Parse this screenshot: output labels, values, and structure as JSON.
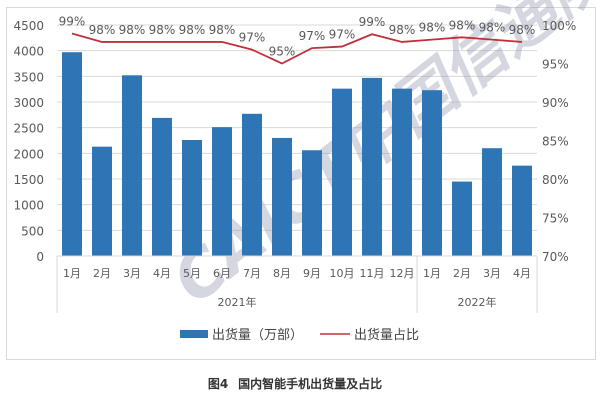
{
  "chart_data": {
    "type": "bar+line",
    "title": "",
    "caption_label": "图4",
    "caption_text": "国内智能手机出货量及占比",
    "categories": [
      "1月",
      "2月",
      "3月",
      "4月",
      "5月",
      "6月",
      "7月",
      "8月",
      "9月",
      "10月",
      "11月",
      "12月",
      "1月",
      "2月",
      "3月",
      "4月"
    ],
    "groups": [
      {
        "label": "2021年",
        "start": 0,
        "end": 11
      },
      {
        "label": "2022年",
        "start": 12,
        "end": 15
      }
    ],
    "series": [
      {
        "name": "出货量（万部）",
        "type": "bar",
        "axis": "left",
        "color": "#2e75b6",
        "values": [
          3970,
          2130,
          3520,
          2690,
          2260,
          2510,
          2770,
          2300,
          2060,
          3260,
          3470,
          3260,
          3230,
          1450,
          2100,
          1760
        ]
      },
      {
        "name": "出货量占比",
        "type": "line",
        "axis": "right",
        "color": "#c0303a",
        "values": [
          98.9,
          97.8,
          97.8,
          97.8,
          97.8,
          97.8,
          96.8,
          95.0,
          97.0,
          97.2,
          98.8,
          97.8,
          98.1,
          98.4,
          98.1,
          97.8
        ],
        "labels": [
          "99%",
          "98%",
          "98%",
          "98%",
          "98%",
          "98%",
          "97%",
          "95%",
          "97%",
          "97%",
          "99%",
          "98%",
          "98%",
          "98%",
          "98%",
          "98%"
        ]
      }
    ],
    "left_axis": {
      "ylim": [
        0,
        4500
      ],
      "ticks": [
        "0",
        "500",
        "1000",
        "1500",
        "2000",
        "2500",
        "3000",
        "3500",
        "4000",
        "4500"
      ]
    },
    "right_axis": {
      "ylim": [
        70,
        100
      ],
      "ticks": [
        "70%",
        "75%",
        "80%",
        "85%",
        "90%",
        "95%",
        "100%"
      ]
    },
    "grid": true,
    "legend_position": "bottom"
  },
  "legend": {
    "bar_label": "出货量（万部）",
    "line_label": "出货量占比"
  },
  "watermark": {
    "text": "CAICT中国信通院"
  },
  "caption": {
    "label": "图4",
    "text": "国内智能手机出货量及占比"
  }
}
